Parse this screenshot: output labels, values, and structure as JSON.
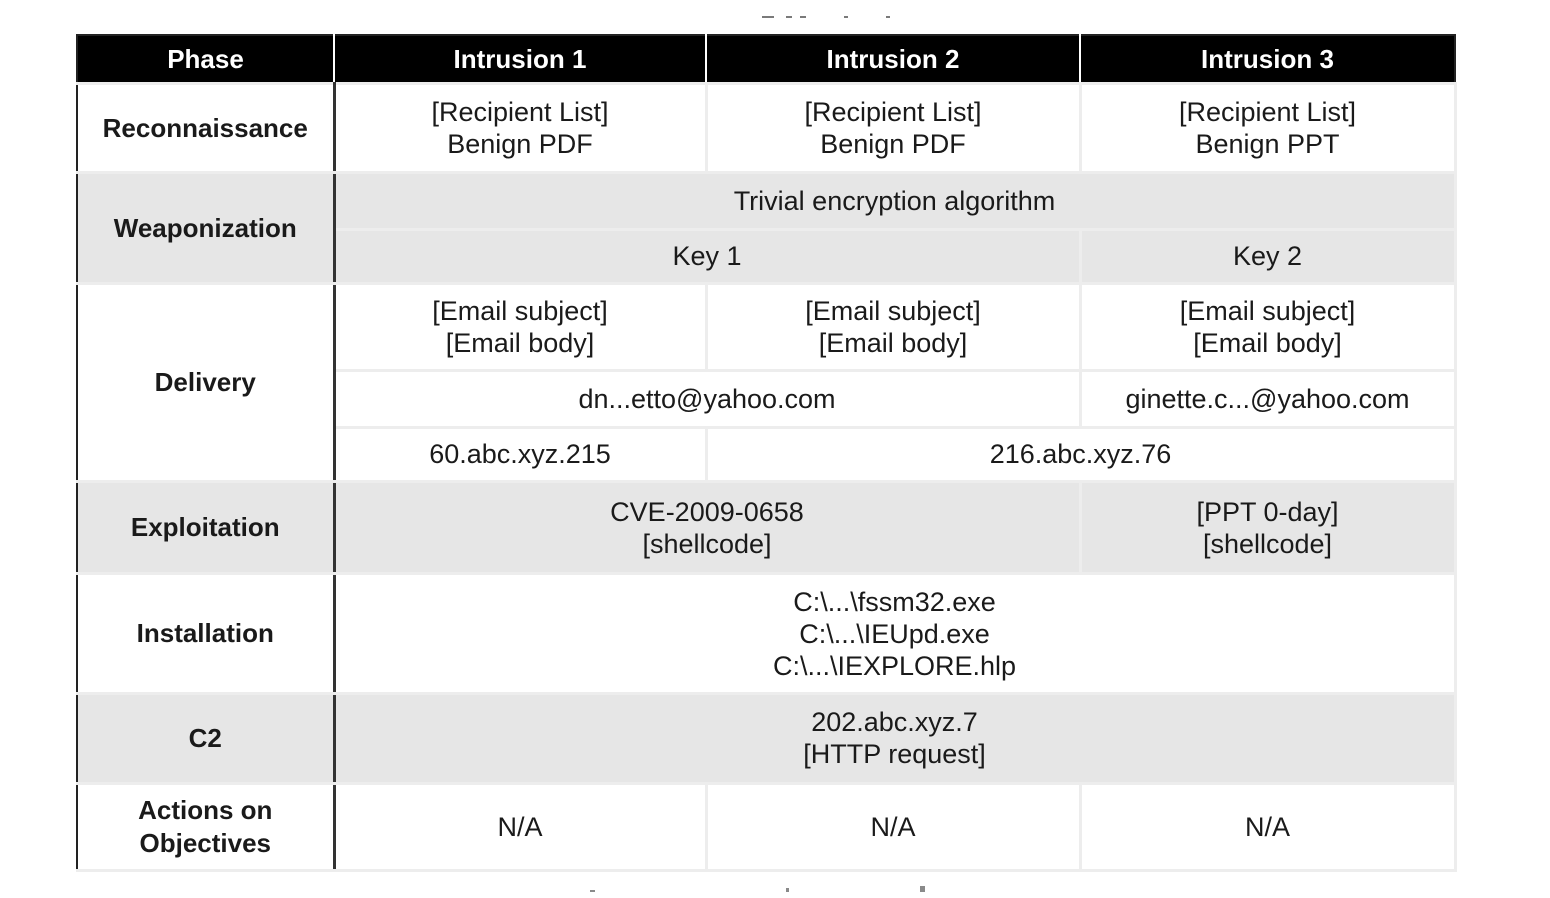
{
  "table": {
    "headers": [
      "Phase",
      "Intrusion 1",
      "Intrusion 2",
      "Intrusion 3"
    ],
    "rows": {
      "reconnaissance": {
        "phase": "Reconnaissance",
        "i1": "[Recipient List]\nBenign PDF",
        "i2": "[Recipient List]\nBenign PDF",
        "i3": "[Recipient List]\nBenign PPT"
      },
      "weaponization": {
        "phase": "Weaponization",
        "algorithm": "Trivial encryption algorithm",
        "key_i1_i2": "Key 1",
        "key_i3": "Key 2"
      },
      "delivery": {
        "phase": "Delivery",
        "email_i1": "[Email subject]\n[Email body]",
        "email_i2": "[Email subject]\n[Email body]",
        "email_i3": "[Email subject]\n[Email body]",
        "sender_i1_i2": "dn...etto@yahoo.com",
        "sender_i3": "ginette.c...@yahoo.com",
        "ip_i1": "60.abc.xyz.215",
        "ip_i2_i3": "216.abc.xyz.76"
      },
      "exploitation": {
        "phase": "Exploitation",
        "i1_i2": "CVE-2009-0658\n[shellcode]",
        "i3": "[PPT 0-day]\n[shellcode]"
      },
      "installation": {
        "phase": "Installation",
        "all": "C:\\...\\fssm32.exe\nC:\\...\\IEUpd.exe\nC:\\...\\IEXPLORE.hlp"
      },
      "c2": {
        "phase": "C2",
        "all": "202.abc.xyz.7\n[HTTP request]"
      },
      "actions": {
        "phase": "Actions on\nObjectives",
        "i1": "N/A",
        "i2": "N/A",
        "i3": "N/A"
      }
    }
  },
  "colors": {
    "header_bg": "#000000",
    "header_text": "#ffffff",
    "shaded_row": "#e6e6e6",
    "grid_line": "#ededed",
    "border": "#222222"
  }
}
